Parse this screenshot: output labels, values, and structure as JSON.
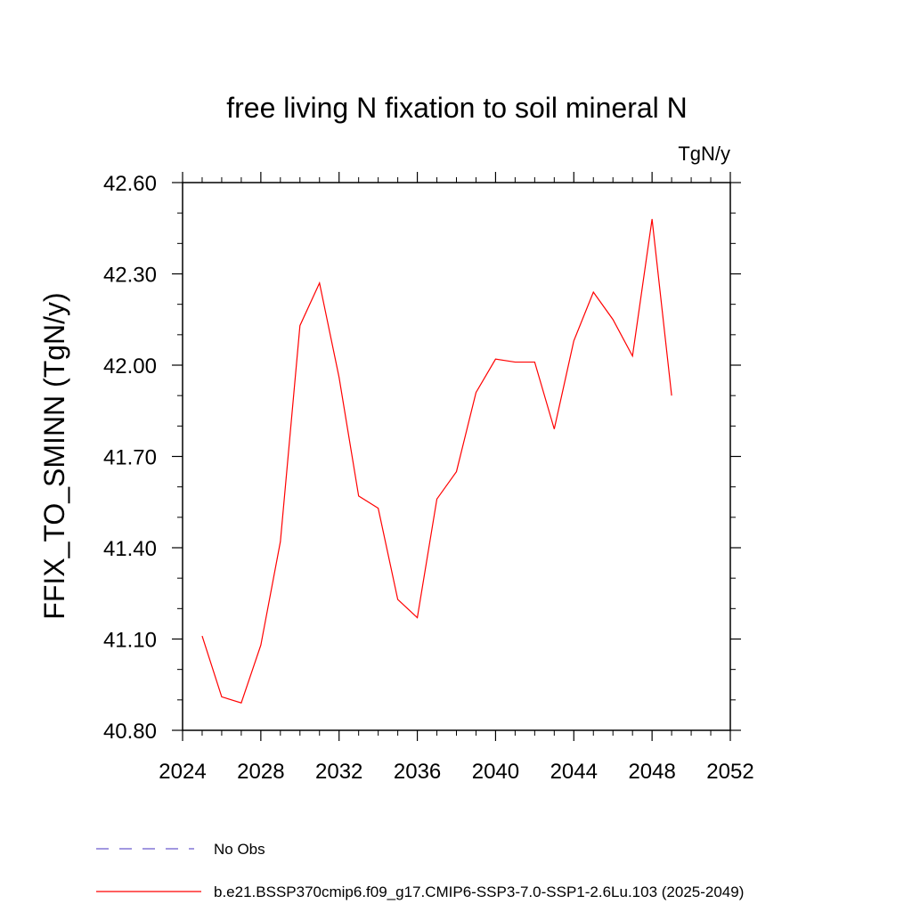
{
  "chart_data": {
    "type": "line",
    "title": "free living N fixation to soil mineral N",
    "units": "TgN/y",
    "ylabel": "FFIX_TO_SMINN  (TgN/y)",
    "xlabel": "",
    "xlim": [
      2024,
      2052
    ],
    "ylim": [
      40.8,
      42.6
    ],
    "x_ticks": [
      "2024",
      "2028",
      "2032",
      "2036",
      "2040",
      "2044",
      "2048",
      "2052"
    ],
    "y_ticks": [
      "40.80",
      "41.10",
      "41.40",
      "41.70",
      "42.00",
      "42.30",
      "42.60"
    ],
    "grid": false,
    "legend_position": "bottom",
    "series": [
      {
        "name": "b.e21.BSSP370cmip6.f09_g17.CMIP6-SSP3-7.0-SSP1-2.6Lu.103 (2025-2049)",
        "color": "#ff0000",
        "style": "solid",
        "x": [
          2025,
          2026,
          2027,
          2028,
          2029,
          2030,
          2031,
          2032,
          2033,
          2034,
          2035,
          2036,
          2037,
          2038,
          2039,
          2040,
          2041,
          2042,
          2043,
          2044,
          2045,
          2046,
          2047,
          2048,
          2049
        ],
        "y": [
          41.11,
          40.91,
          40.89,
          41.08,
          41.42,
          42.13,
          42.27,
          41.96,
          41.57,
          41.53,
          41.23,
          41.17,
          41.56,
          41.65,
          41.91,
          42.02,
          42.01,
          42.01,
          41.79,
          42.08,
          42.24,
          42.15,
          42.03,
          42.48,
          41.9
        ]
      },
      {
        "name": "No Obs",
        "color": "#6a5acd",
        "style": "dashed",
        "x": [],
        "y": []
      }
    ]
  }
}
